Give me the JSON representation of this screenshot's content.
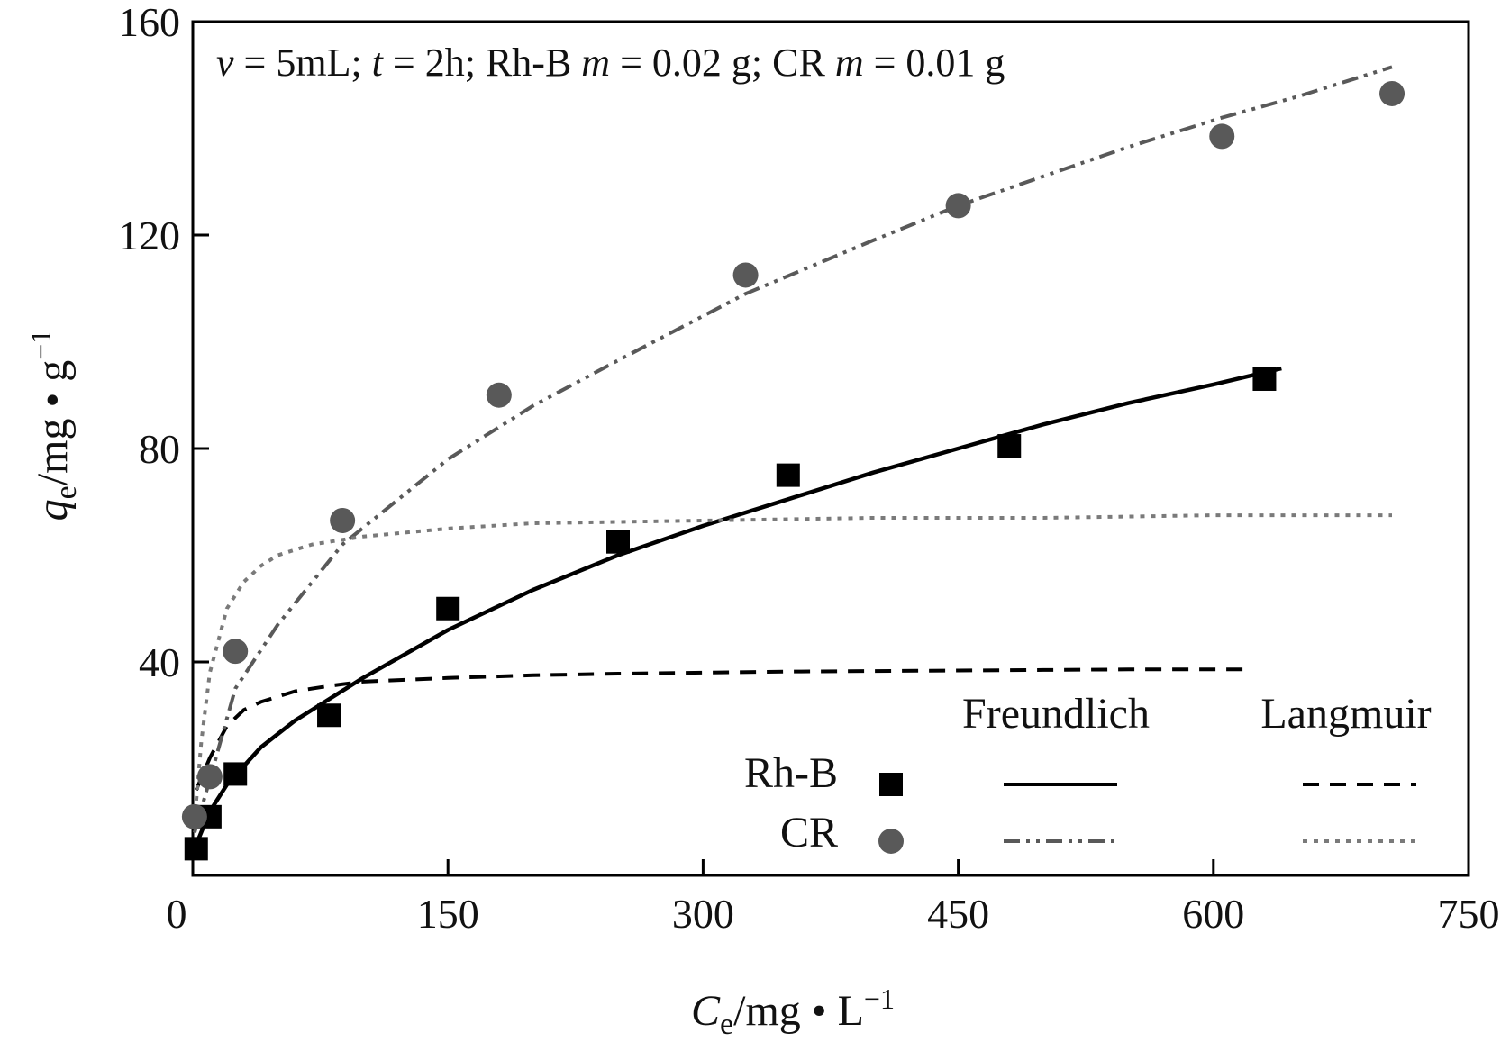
{
  "chart_data": {
    "type": "scatter",
    "annotation": {
      "v_sym": "v",
      "v_val": " = 5mL; ",
      "t_sym": "t",
      "t_val": " = 2h; Rh-B ",
      "m1_sym": "m",
      "m1_val": " = 0.02 g; CR ",
      "m2_sym": "m",
      "m2_val": " = 0.01 g"
    },
    "xaxis": {
      "label_main": "C",
      "label_sub": "e",
      "label_rest": "/mg • L",
      "label_sup": "−1",
      "lim": [
        0,
        750
      ],
      "ticks": [
        0,
        150,
        300,
        450,
        600,
        750
      ],
      "tick_labels": [
        "0",
        "150",
        "300",
        "450",
        "600",
        "750"
      ]
    },
    "yaxis": {
      "label_main": "q",
      "label_sub": "e",
      "label_rest": "/mg • g",
      "label_sup": "−1",
      "lim": [
        0,
        160
      ],
      "ticks": [
        40,
        80,
        120,
        160
      ],
      "tick_labels": [
        "40",
        "80",
        "120",
        "160"
      ]
    },
    "legend": {
      "header_freundlich": "Freundlich",
      "header_langmuir": "Langmuir",
      "rows": [
        {
          "label": "Rh-B",
          "marker": "square"
        },
        {
          "label": "CR",
          "marker": "circle"
        }
      ]
    },
    "colors": {
      "rhb": "#000000",
      "cr": "#595959"
    },
    "series": [
      {
        "name": "Rh-B",
        "marker": "square",
        "x": [
          2,
          10,
          25,
          80,
          150,
          250,
          350,
          480,
          630
        ],
        "y": [
          5,
          11,
          19,
          30,
          50,
          62.5,
          75,
          80.5,
          93
        ]
      },
      {
        "name": "CR",
        "marker": "circle",
        "x": [
          1,
          10,
          25,
          88,
          180,
          325,
          450,
          605,
          705
        ],
        "y": [
          11,
          18.5,
          42,
          66.5,
          90,
          112.5,
          125.5,
          138.5,
          146.5
        ]
      }
    ],
    "fits": [
      {
        "name": "Rh-B Freundlich",
        "style": "solid",
        "x": [
          1,
          10,
          20,
          40,
          60,
          80,
          100,
          150,
          200,
          250,
          300,
          350,
          400,
          450,
          500,
          550,
          600,
          640
        ],
        "y": [
          5,
          12,
          17,
          24,
          29,
          33,
          37,
          46,
          53.5,
          60,
          65.5,
          70.5,
          75.5,
          80,
          84.5,
          88.5,
          92,
          95
        ]
      },
      {
        "name": "Rh-B Langmuir",
        "style": "dashed",
        "x": [
          2,
          10,
          20,
          30,
          40,
          60,
          80,
          100,
          150,
          200,
          250,
          300,
          350,
          400,
          450,
          500,
          550,
          620
        ],
        "y": [
          16,
          22,
          28,
          31,
          32.5,
          34.5,
          35.5,
          36.3,
          37,
          37.5,
          37.8,
          38,
          38.2,
          38.3,
          38.4,
          38.5,
          38.6,
          38.6
        ]
      },
      {
        "name": "CR Freundlich",
        "style": "dash-dot-dot",
        "x": [
          1,
          10,
          25,
          50,
          88,
          150,
          200,
          250,
          325,
          400,
          450,
          500,
          550,
          605,
          650,
          705
        ],
        "y": [
          8,
          18,
          35,
          47,
          62,
          78,
          88,
          96.5,
          109,
          119,
          125.5,
          131,
          136.5,
          142,
          146,
          151.5
        ]
      },
      {
        "name": "CR Langmuir",
        "style": "dotted",
        "x": [
          1,
          5,
          10,
          20,
          30,
          40,
          50,
          70,
          100,
          150,
          200,
          300,
          400,
          500,
          600,
          705
        ],
        "y": [
          10,
          25,
          38,
          50,
          55,
          58,
          60,
          62,
          63.5,
          65,
          66,
          66.5,
          67,
          67,
          67.5,
          67.5
        ]
      }
    ]
  }
}
